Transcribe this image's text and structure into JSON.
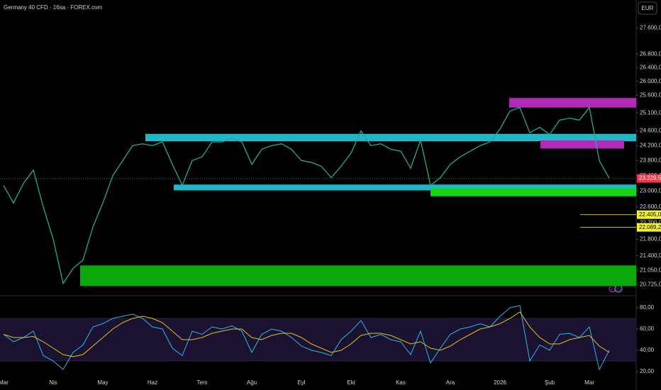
{
  "chart_data": [
    {
      "type": "line",
      "title": "Germany 40 CFD · 16sa · FOREX.com",
      "currency": "EUR",
      "log_scale": true,
      "color": "#22ab94",
      "values": [
        23150,
        22700,
        23200,
        23550,
        22600,
        21800,
        20750,
        21100,
        21300,
        22100,
        22700,
        23400,
        23800,
        24200,
        24250,
        24200,
        24300,
        23700,
        23150,
        23800,
        23900,
        24300,
        24300,
        24400,
        24300,
        23700,
        24100,
        24200,
        24250,
        24100,
        23800,
        23750,
        23650,
        23350,
        23650,
        24000,
        24600,
        24200,
        24250,
        24100,
        24050,
        23600,
        24350,
        23150,
        23350,
        23700,
        23900,
        24050,
        24200,
        24300,
        24650,
        25150,
        25250,
        24550,
        24700,
        24500,
        24900,
        24950,
        24900,
        25250,
        23800,
        23330
      ],
      "ylim": [
        20500,
        28470
      ],
      "yticks": [
        {
          "value": 27600,
          "label": "27.600,0"
        },
        {
          "value": 26800,
          "label": "26.800,0"
        },
        {
          "value": 26400,
          "label": "26.400,0"
        },
        {
          "value": 26000,
          "label": "26.000,0"
        },
        {
          "value": 25600,
          "label": "25.600,0"
        },
        {
          "value": 25100,
          "label": "25.100,0"
        },
        {
          "value": 24600,
          "label": "24.600,0"
        },
        {
          "value": 24200,
          "label": "24.200,0"
        },
        {
          "value": 23800,
          "label": "23.800,0"
        },
        {
          "value": 23400,
          "label": "23.400,0"
        },
        {
          "value": 23000,
          "label": "23.000,0"
        },
        {
          "value": 22600,
          "label": "22.600,0"
        },
        {
          "value": 22200,
          "label": "22.200,0"
        },
        {
          "value": 21800,
          "label": "21.800,0"
        },
        {
          "value": 21400,
          "label": "21.400,0"
        },
        {
          "value": 21050,
          "label": "21.050,0"
        },
        {
          "value": 20725,
          "label": "20.725,0"
        }
      ],
      "zones": [
        {
          "low": 24320,
          "high": 24520,
          "color": "#1fb8c8"
        },
        {
          "low": 23020,
          "high": 23170,
          "color": "#1fb8c8"
        },
        {
          "low": 25250,
          "high": 25520,
          "color": "#b02cb8"
        },
        {
          "low": 24120,
          "high": 24340,
          "color": "#b02cb8"
        },
        {
          "low": 22870,
          "high": 23080,
          "color": "#15d615"
        },
        {
          "low": 20690,
          "high": 21170,
          "color": "#0aa80a"
        }
      ],
      "levels": [
        {
          "value": 22405,
          "label": "22.405,0",
          "color": "#f5f528"
        },
        {
          "value": 22089.2,
          "label": "22.089,2",
          "color": "#f5f528"
        }
      ],
      "last_price": {
        "value": 23329.5,
        "label": "23.329,5",
        "color": "#f23645"
      }
    },
    {
      "type": "line",
      "categories": [
        "Mar",
        null,
        null,
        null,
        null,
        "Nis",
        null,
        null,
        null,
        null,
        "May",
        null,
        null,
        null,
        null,
        "Haz",
        null,
        null,
        null,
        null,
        "Tem",
        null,
        null,
        null,
        null,
        "Ağu",
        null,
        null,
        null,
        null,
        "Eyl",
        null,
        null,
        null,
        null,
        "Eki",
        null,
        null,
        null,
        null,
        "Kas",
        null,
        null,
        null,
        null,
        "Ara",
        null,
        null,
        null,
        null,
        "2026",
        null,
        null,
        null,
        null,
        "Şub",
        null,
        null,
        null,
        "Mar",
        null,
        null
      ],
      "series": [
        {
          "color": "#2fb5e8",
          "values": [
            55,
            48,
            52,
            58,
            35,
            30,
            22,
            38,
            45,
            62,
            65,
            70,
            72,
            74,
            70,
            62,
            60,
            42,
            35,
            58,
            55,
            62,
            60,
            63,
            58,
            38,
            55,
            60,
            58,
            52,
            44,
            40,
            38,
            35,
            50,
            58,
            68,
            52,
            55,
            50,
            48,
            36,
            58,
            28,
            42,
            55,
            60,
            62,
            65,
            62,
            72,
            80,
            82,
            30,
            45,
            40,
            55,
            56,
            52,
            62,
            22,
            40
          ]
        },
        {
          "color": "#e0c020",
          "values": [
            55,
            52,
            52,
            53,
            48,
            42,
            36,
            34,
            36,
            44,
            52,
            60,
            66,
            70,
            72,
            70,
            66,
            58,
            50,
            50,
            52,
            56,
            58,
            60,
            60,
            52,
            50,
            54,
            56,
            56,
            52,
            46,
            42,
            38,
            40,
            46,
            54,
            56,
            56,
            54,
            50,
            46,
            48,
            42,
            40,
            44,
            50,
            55,
            60,
            62,
            65,
            70,
            76,
            62,
            52,
            46,
            46,
            50,
            52,
            54,
            44,
            38
          ]
        }
      ],
      "band": [
        30,
        70
      ],
      "ylim": [
        16,
        89.33
      ],
      "yticks": [
        {
          "value": 80,
          "label": "80,00"
        },
        {
          "value": 60,
          "label": "60,00"
        },
        {
          "value": 40,
          "label": "40,00"
        },
        {
          "value": 20,
          "label": "20,00"
        }
      ]
    }
  ]
}
